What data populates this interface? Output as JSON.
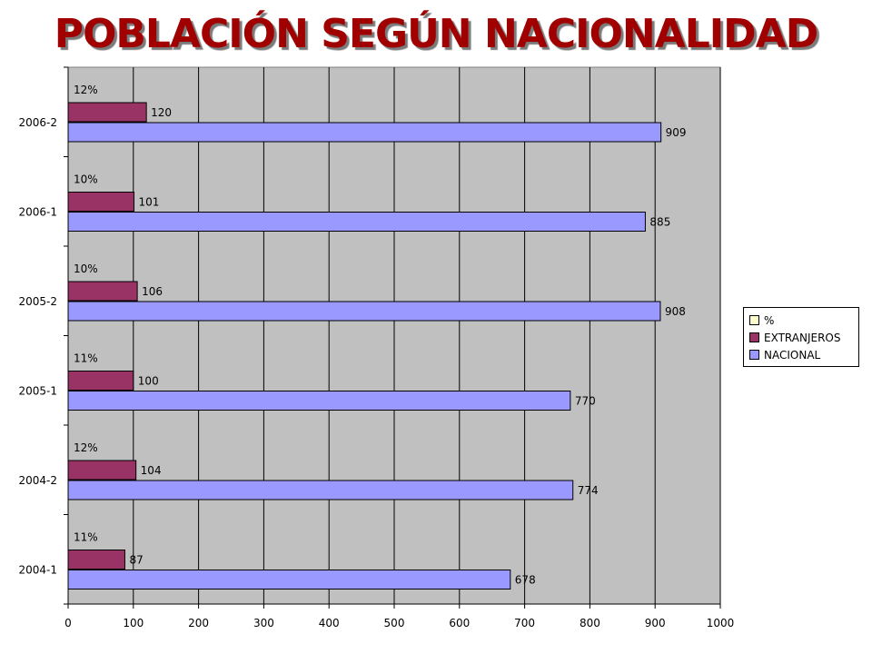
{
  "title": "POBLACIÓN SEGÚN NACIONALIDAD",
  "chart_data": {
    "type": "bar",
    "orientation": "horizontal",
    "categories": [
      "2004-1",
      "2004-2",
      "2005-1",
      "2005-2",
      "2006-1",
      "2006-2"
    ],
    "series": [
      {
        "name": "NACIONAL",
        "color": "#9999ff",
        "values": [
          678,
          774,
          770,
          908,
          885,
          909
        ],
        "labels": [
          "678",
          "774",
          "770",
          "908",
          "885",
          "909"
        ]
      },
      {
        "name": "EXTRANJEROS",
        "color": "#993366",
        "values": [
          87,
          104,
          100,
          106,
          101,
          120
        ],
        "labels": [
          "87",
          "104",
          "100",
          "106",
          "101",
          "120"
        ]
      },
      {
        "name": "%",
        "color": "#ffffcc",
        "values": [
          11,
          12,
          11,
          10,
          10,
          12
        ],
        "labels": [
          "11%",
          "12%",
          "11%",
          "10%",
          "10%",
          "12%"
        ]
      }
    ],
    "xlim": [
      0,
      1000
    ],
    "xticks": [
      "0",
      "100",
      "200",
      "300",
      "400",
      "500",
      "600",
      "700",
      "800",
      "900",
      "1000"
    ],
    "grid": true,
    "plot_background": "#c0c0c0",
    "legend_position": "right",
    "title_color": "#a00000"
  }
}
